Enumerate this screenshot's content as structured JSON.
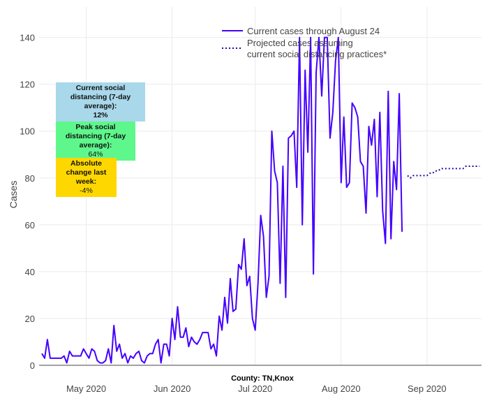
{
  "chart_data": {
    "type": "line",
    "xlabel": "County: TN,Knox",
    "ylabel": "Cases",
    "ylim": [
      0,
      153
    ],
    "yticks": [
      0,
      20,
      40,
      60,
      80,
      100,
      120,
      140
    ],
    "xticks": [
      {
        "label": "May 2020",
        "day": 16
      },
      {
        "label": "Jun 2020",
        "day": 47
      },
      {
        "label": "Jul 2020",
        "day": 77
      },
      {
        "label": "Aug 2020",
        "day": 108
      },
      {
        "label": "Sep 2020",
        "day": 139
      }
    ],
    "x_start": "2020-04-15",
    "series": [
      {
        "name": "Current cases through August 24",
        "style": "solid",
        "color": "#4400ff",
        "start_day": 0,
        "values": [
          5,
          3,
          11,
          3,
          3,
          3,
          3,
          3,
          4,
          1,
          6,
          4,
          4,
          4,
          4,
          7,
          5,
          3,
          7,
          6,
          2,
          1,
          1,
          2,
          7,
          1,
          17,
          6,
          9,
          3,
          5,
          1,
          4,
          3,
          5,
          6,
          2,
          1,
          4,
          5,
          5,
          9,
          11,
          1,
          9,
          9,
          4,
          20,
          11,
          25,
          12,
          12,
          16,
          8,
          12,
          10,
          9,
          11,
          14,
          14,
          14,
          7,
          9,
          4,
          21,
          15,
          29,
          18,
          37,
          23,
          24,
          43,
          41,
          54,
          34,
          38,
          20,
          15,
          35,
          64,
          55,
          29,
          38,
          100,
          83,
          78,
          35,
          85,
          29,
          97,
          98,
          100,
          76,
          140,
          60,
          126,
          91,
          140,
          39,
          125,
          140,
          115,
          140,
          140,
          97,
          108,
          130,
          140,
          78,
          106,
          76,
          78,
          112,
          110,
          106,
          87,
          85,
          65,
          102,
          94,
          105,
          72,
          108,
          66,
          52,
          117,
          54,
          87,
          75,
          116,
          57
        ]
      },
      {
        "name": "Projected cases assuming current social distancing practices*",
        "style": "dotted",
        "color": "#2a00b0",
        "start_day": 132,
        "values": [
          81,
          80,
          81,
          81,
          81,
          81,
          81,
          81,
          82,
          82,
          83,
          83,
          84,
          84,
          84,
          84,
          84,
          84,
          84,
          84,
          84,
          85,
          85,
          85,
          85,
          85,
          85
        ]
      }
    ],
    "legend": {
      "placement": "top-center"
    }
  },
  "annotations": [
    {
      "title": "Current social distancing (7-day average):",
      "value": "12%",
      "color": "#a8d8ea"
    },
    {
      "title": "Peak social distancing (7-day average):",
      "value": "64%",
      "color": "#5ef78c"
    },
    {
      "title": "Absolute change last week:",
      "value": "-4%",
      "color": "#ffd700"
    }
  ]
}
